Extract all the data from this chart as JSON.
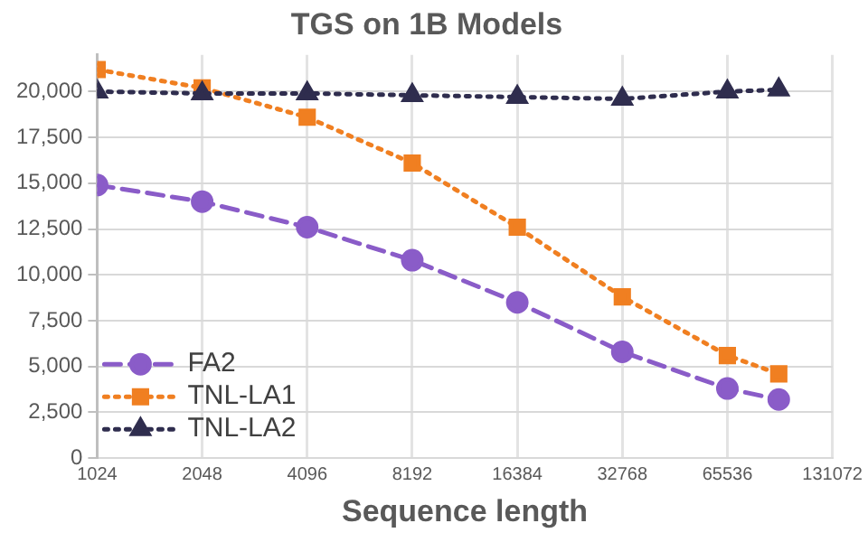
{
  "chart_data": {
    "type": "line",
    "title": "TGS on 1B Models",
    "xlabel": "Sequence length",
    "x": [
      1024,
      2048,
      4096,
      8192,
      16384,
      32768,
      65536,
      92000
    ],
    "series": [
      {
        "name": "FA2",
        "color": "#8a5cc8",
        "marker": "circle",
        "line_style": "dashed",
        "values": [
          14900,
          14000,
          12600,
          10800,
          8500,
          5800,
          3800,
          3200
        ]
      },
      {
        "name": "TNL-LA1",
        "color": "#f07f21",
        "marker": "square",
        "line_style": "dotted",
        "values": [
          21200,
          20200,
          18600,
          16100,
          12600,
          8800,
          5600,
          4600
        ]
      },
      {
        "name": "TNL-LA2",
        "color": "#2f2d4e",
        "marker": "triangle",
        "line_style": "dotted",
        "values": [
          20000,
          19900,
          19900,
          19800,
          19700,
          19600,
          20000,
          20100
        ]
      }
    ],
    "log": "x",
    "xlim": [
      1024,
      131072
    ],
    "xticks": [
      1024,
      2048,
      4096,
      8192,
      16384,
      32768,
      65536,
      131072
    ],
    "ylim": [
      0,
      22000
    ],
    "yticks": [
      0,
      {
        "value": 2500,
        "label": "2,500"
      },
      {
        "value": 5000,
        "label": "5,000"
      },
      {
        "value": 7500,
        "label": "7,500"
      },
      {
        "value": 10000,
        "label": "10,000"
      },
      {
        "value": 12500,
        "label": "12,500"
      },
      {
        "value": 15000,
        "label": "15,000"
      },
      {
        "value": 17500,
        "label": "17,500"
      },
      {
        "value": 20000,
        "label": "20,000"
      }
    ],
    "grid": true,
    "legend": "bottom left"
  }
}
